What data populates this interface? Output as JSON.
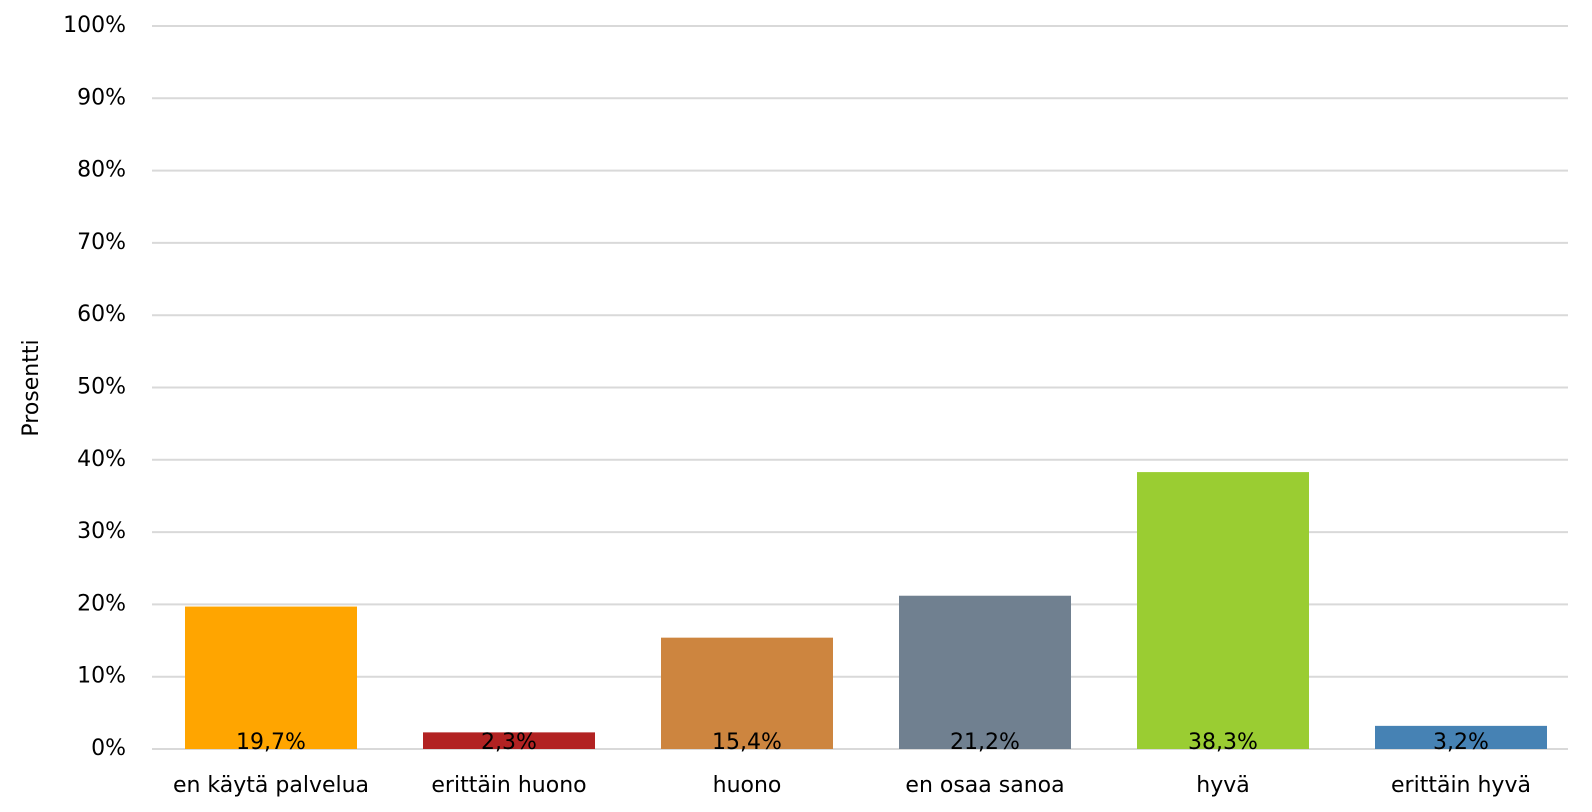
{
  "chart_data": {
    "type": "bar",
    "y_label": "Prosentti",
    "categories": [
      "en käytä palvelua",
      "erittäin huono",
      "huono",
      "en osaa sanoa",
      "hyvä",
      "erittäin hyvä"
    ],
    "values": [
      19.7,
      2.3,
      15.4,
      21.2,
      38.3,
      3.2
    ],
    "value_labels": [
      "19,7%",
      "2,3%",
      "15,4%",
      "21,2%",
      "38,3%",
      "3,2%"
    ],
    "colors": [
      "#ffa500",
      "#b22222",
      "#cd853f",
      "#708090",
      "#9acd32",
      "#4682b4"
    ],
    "ylim": [
      0,
      100
    ],
    "yticks": [
      {
        "value": 0,
        "label": "0%"
      },
      {
        "value": 10,
        "label": "10%"
      },
      {
        "value": 20,
        "label": "20%"
      },
      {
        "value": 30,
        "label": "30%"
      },
      {
        "value": 40,
        "label": "40%"
      },
      {
        "value": 50,
        "label": "50%"
      },
      {
        "value": 60,
        "label": "60%"
      },
      {
        "value": 70,
        "label": "70%"
      },
      {
        "value": 80,
        "label": "80%"
      },
      {
        "value": 90,
        "label": "90%"
      },
      {
        "value": 100,
        "label": "100%"
      }
    ],
    "grid": true
  }
}
